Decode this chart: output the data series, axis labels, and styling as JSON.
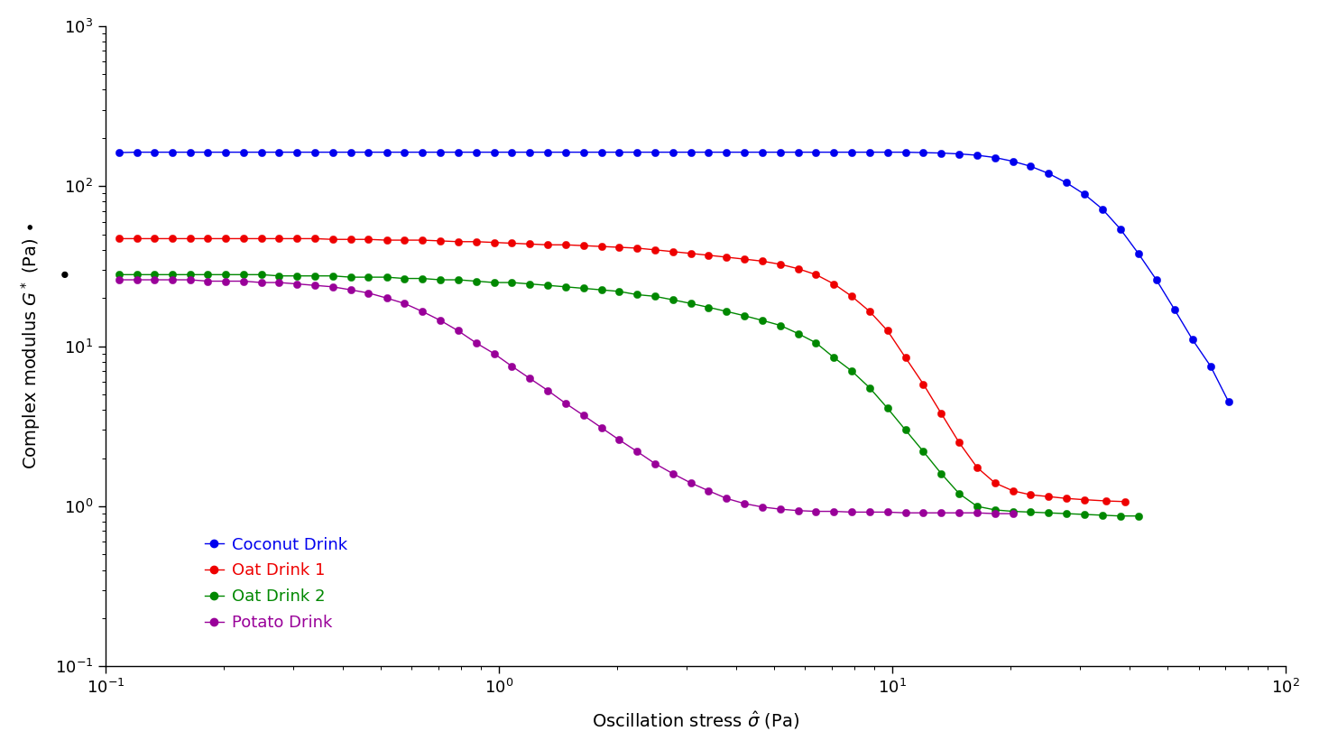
{
  "xlim": [
    0.1,
    100
  ],
  "ylim": [
    0.1,
    1000
  ],
  "background_color": "#ffffff",
  "series": {
    "Coconut Drink": {
      "color": "#0000ee",
      "x": [
        0.108,
        0.12,
        0.133,
        0.148,
        0.164,
        0.182,
        0.202,
        0.224,
        0.249,
        0.276,
        0.307,
        0.34,
        0.378,
        0.42,
        0.466,
        0.518,
        0.575,
        0.638,
        0.709,
        0.787,
        0.874,
        0.971,
        1.078,
        1.197,
        1.329,
        1.476,
        1.639,
        1.82,
        2.021,
        2.244,
        2.491,
        2.766,
        3.072,
        3.411,
        3.787,
        4.207,
        4.67,
        5.185,
        5.756,
        6.393,
        7.099,
        7.882,
        8.752,
        9.717,
        10.791,
        11.984,
        13.309,
        14.779,
        16.41,
        18.219,
        20.228,
        22.462,
        24.942,
        27.695,
        30.757,
        34.162,
        37.95,
        42.167,
        46.862,
        52.09,
        57.91,
        64.382,
        71.513
      ],
      "y": [
        162,
        163,
        163,
        163,
        163,
        163,
        163,
        163,
        163,
        163,
        163,
        163,
        163,
        163,
        163,
        163,
        163,
        163,
        163,
        163,
        163,
        163,
        163,
        163,
        163,
        163,
        163,
        163,
        163,
        163,
        163,
        163,
        163,
        163,
        163,
        163,
        163,
        163,
        163,
        163,
        163,
        163,
        163,
        163,
        163,
        162,
        161,
        159,
        156,
        151,
        143,
        133,
        120,
        105,
        89,
        72,
        54,
        38,
        26,
        17,
        11,
        7.5,
        4.5
      ]
    },
    "Oat Drink 1": {
      "color": "#ee0000",
      "x": [
        0.108,
        0.12,
        0.133,
        0.148,
        0.164,
        0.182,
        0.202,
        0.224,
        0.249,
        0.276,
        0.307,
        0.34,
        0.378,
        0.42,
        0.466,
        0.518,
        0.575,
        0.638,
        0.709,
        0.787,
        0.874,
        0.971,
        1.078,
        1.197,
        1.329,
        1.476,
        1.639,
        1.82,
        2.021,
        2.244,
        2.491,
        2.766,
        3.072,
        3.411,
        3.787,
        4.207,
        4.67,
        5.185,
        5.756,
        6.393,
        7.099,
        7.882,
        8.752,
        9.717,
        10.791,
        11.984,
        13.309,
        14.779,
        16.41,
        18.219,
        20.228,
        22.462,
        24.942,
        27.695,
        30.757,
        35.0,
        39.0
      ],
      "y": [
        47,
        47,
        47,
        47,
        47,
        47,
        47,
        47,
        47,
        47,
        47,
        47,
        46.5,
        46.5,
        46.5,
        46,
        46,
        46,
        45.5,
        45,
        45,
        44.5,
        44,
        43.5,
        43,
        43,
        42.5,
        42,
        41.5,
        41,
        40,
        39,
        38,
        37,
        36,
        35,
        34,
        32.5,
        30.5,
        28,
        24.5,
        20.5,
        16.5,
        12.5,
        8.5,
        5.8,
        3.8,
        2.5,
        1.75,
        1.4,
        1.25,
        1.18,
        1.15,
        1.12,
        1.1,
        1.08,
        1.07
      ]
    },
    "Oat Drink 2": {
      "color": "#008800",
      "x": [
        0.108,
        0.12,
        0.133,
        0.148,
        0.164,
        0.182,
        0.202,
        0.224,
        0.249,
        0.276,
        0.307,
        0.34,
        0.378,
        0.42,
        0.466,
        0.518,
        0.575,
        0.638,
        0.709,
        0.787,
        0.874,
        0.971,
        1.078,
        1.197,
        1.329,
        1.476,
        1.639,
        1.82,
        2.021,
        2.244,
        2.491,
        2.766,
        3.072,
        3.411,
        3.787,
        4.207,
        4.67,
        5.185,
        5.756,
        6.393,
        7.099,
        7.882,
        8.752,
        9.717,
        10.791,
        11.984,
        13.309,
        14.779,
        16.41,
        18.219,
        20.228,
        22.462,
        24.942,
        27.695,
        30.757,
        34.162,
        37.95,
        42.167
      ],
      "y": [
        28,
        28,
        28,
        28,
        28,
        28,
        28,
        28,
        28,
        27.5,
        27.5,
        27.5,
        27.5,
        27,
        27,
        27,
        26.5,
        26.5,
        26,
        26,
        25.5,
        25,
        25,
        24.5,
        24,
        23.5,
        23,
        22.5,
        22,
        21,
        20.5,
        19.5,
        18.5,
        17.5,
        16.5,
        15.5,
        14.5,
        13.5,
        12,
        10.5,
        8.5,
        7.0,
        5.5,
        4.1,
        3.0,
        2.2,
        1.6,
        1.2,
        1.0,
        0.95,
        0.93,
        0.92,
        0.91,
        0.9,
        0.89,
        0.88,
        0.87,
        0.87
      ]
    },
    "Potato Drink": {
      "color": "#990099",
      "x": [
        0.108,
        0.12,
        0.133,
        0.148,
        0.164,
        0.182,
        0.202,
        0.224,
        0.249,
        0.276,
        0.307,
        0.34,
        0.378,
        0.42,
        0.466,
        0.518,
        0.575,
        0.638,
        0.709,
        0.787,
        0.874,
        0.971,
        1.078,
        1.197,
        1.329,
        1.476,
        1.639,
        1.82,
        2.021,
        2.244,
        2.491,
        2.766,
        3.072,
        3.411,
        3.787,
        4.207,
        4.67,
        5.185,
        5.756,
        6.393,
        7.099,
        7.882,
        8.752,
        9.717,
        10.791,
        11.984,
        13.309,
        14.779,
        16.41,
        18.219,
        20.228
      ],
      "y": [
        26,
        26,
        26,
        26,
        26,
        25.5,
        25.5,
        25.5,
        25,
        25,
        24.5,
        24,
        23.5,
        22.5,
        21.5,
        20,
        18.5,
        16.5,
        14.5,
        12.5,
        10.5,
        9.0,
        7.5,
        6.3,
        5.3,
        4.4,
        3.7,
        3.1,
        2.6,
        2.2,
        1.85,
        1.6,
        1.4,
        1.25,
        1.12,
        1.04,
        0.99,
        0.96,
        0.94,
        0.93,
        0.93,
        0.92,
        0.92,
        0.92,
        0.91,
        0.91,
        0.91,
        0.91,
        0.91,
        0.9,
        0.9
      ]
    }
  },
  "legend_order": [
    "Coconut Drink",
    "Oat Drink 1",
    "Oat Drink 2",
    "Potato Drink"
  ],
  "legend_colors": {
    "Coconut Drink": "#0000ee",
    "Oat Drink 1": "#ee0000",
    "Oat Drink 2": "#008800",
    "Potato Drink": "#990099"
  },
  "marker_size": 6,
  "line_width": 1.0,
  "font_size_labels": 14,
  "font_size_ticks": 13,
  "font_size_legend": 13
}
